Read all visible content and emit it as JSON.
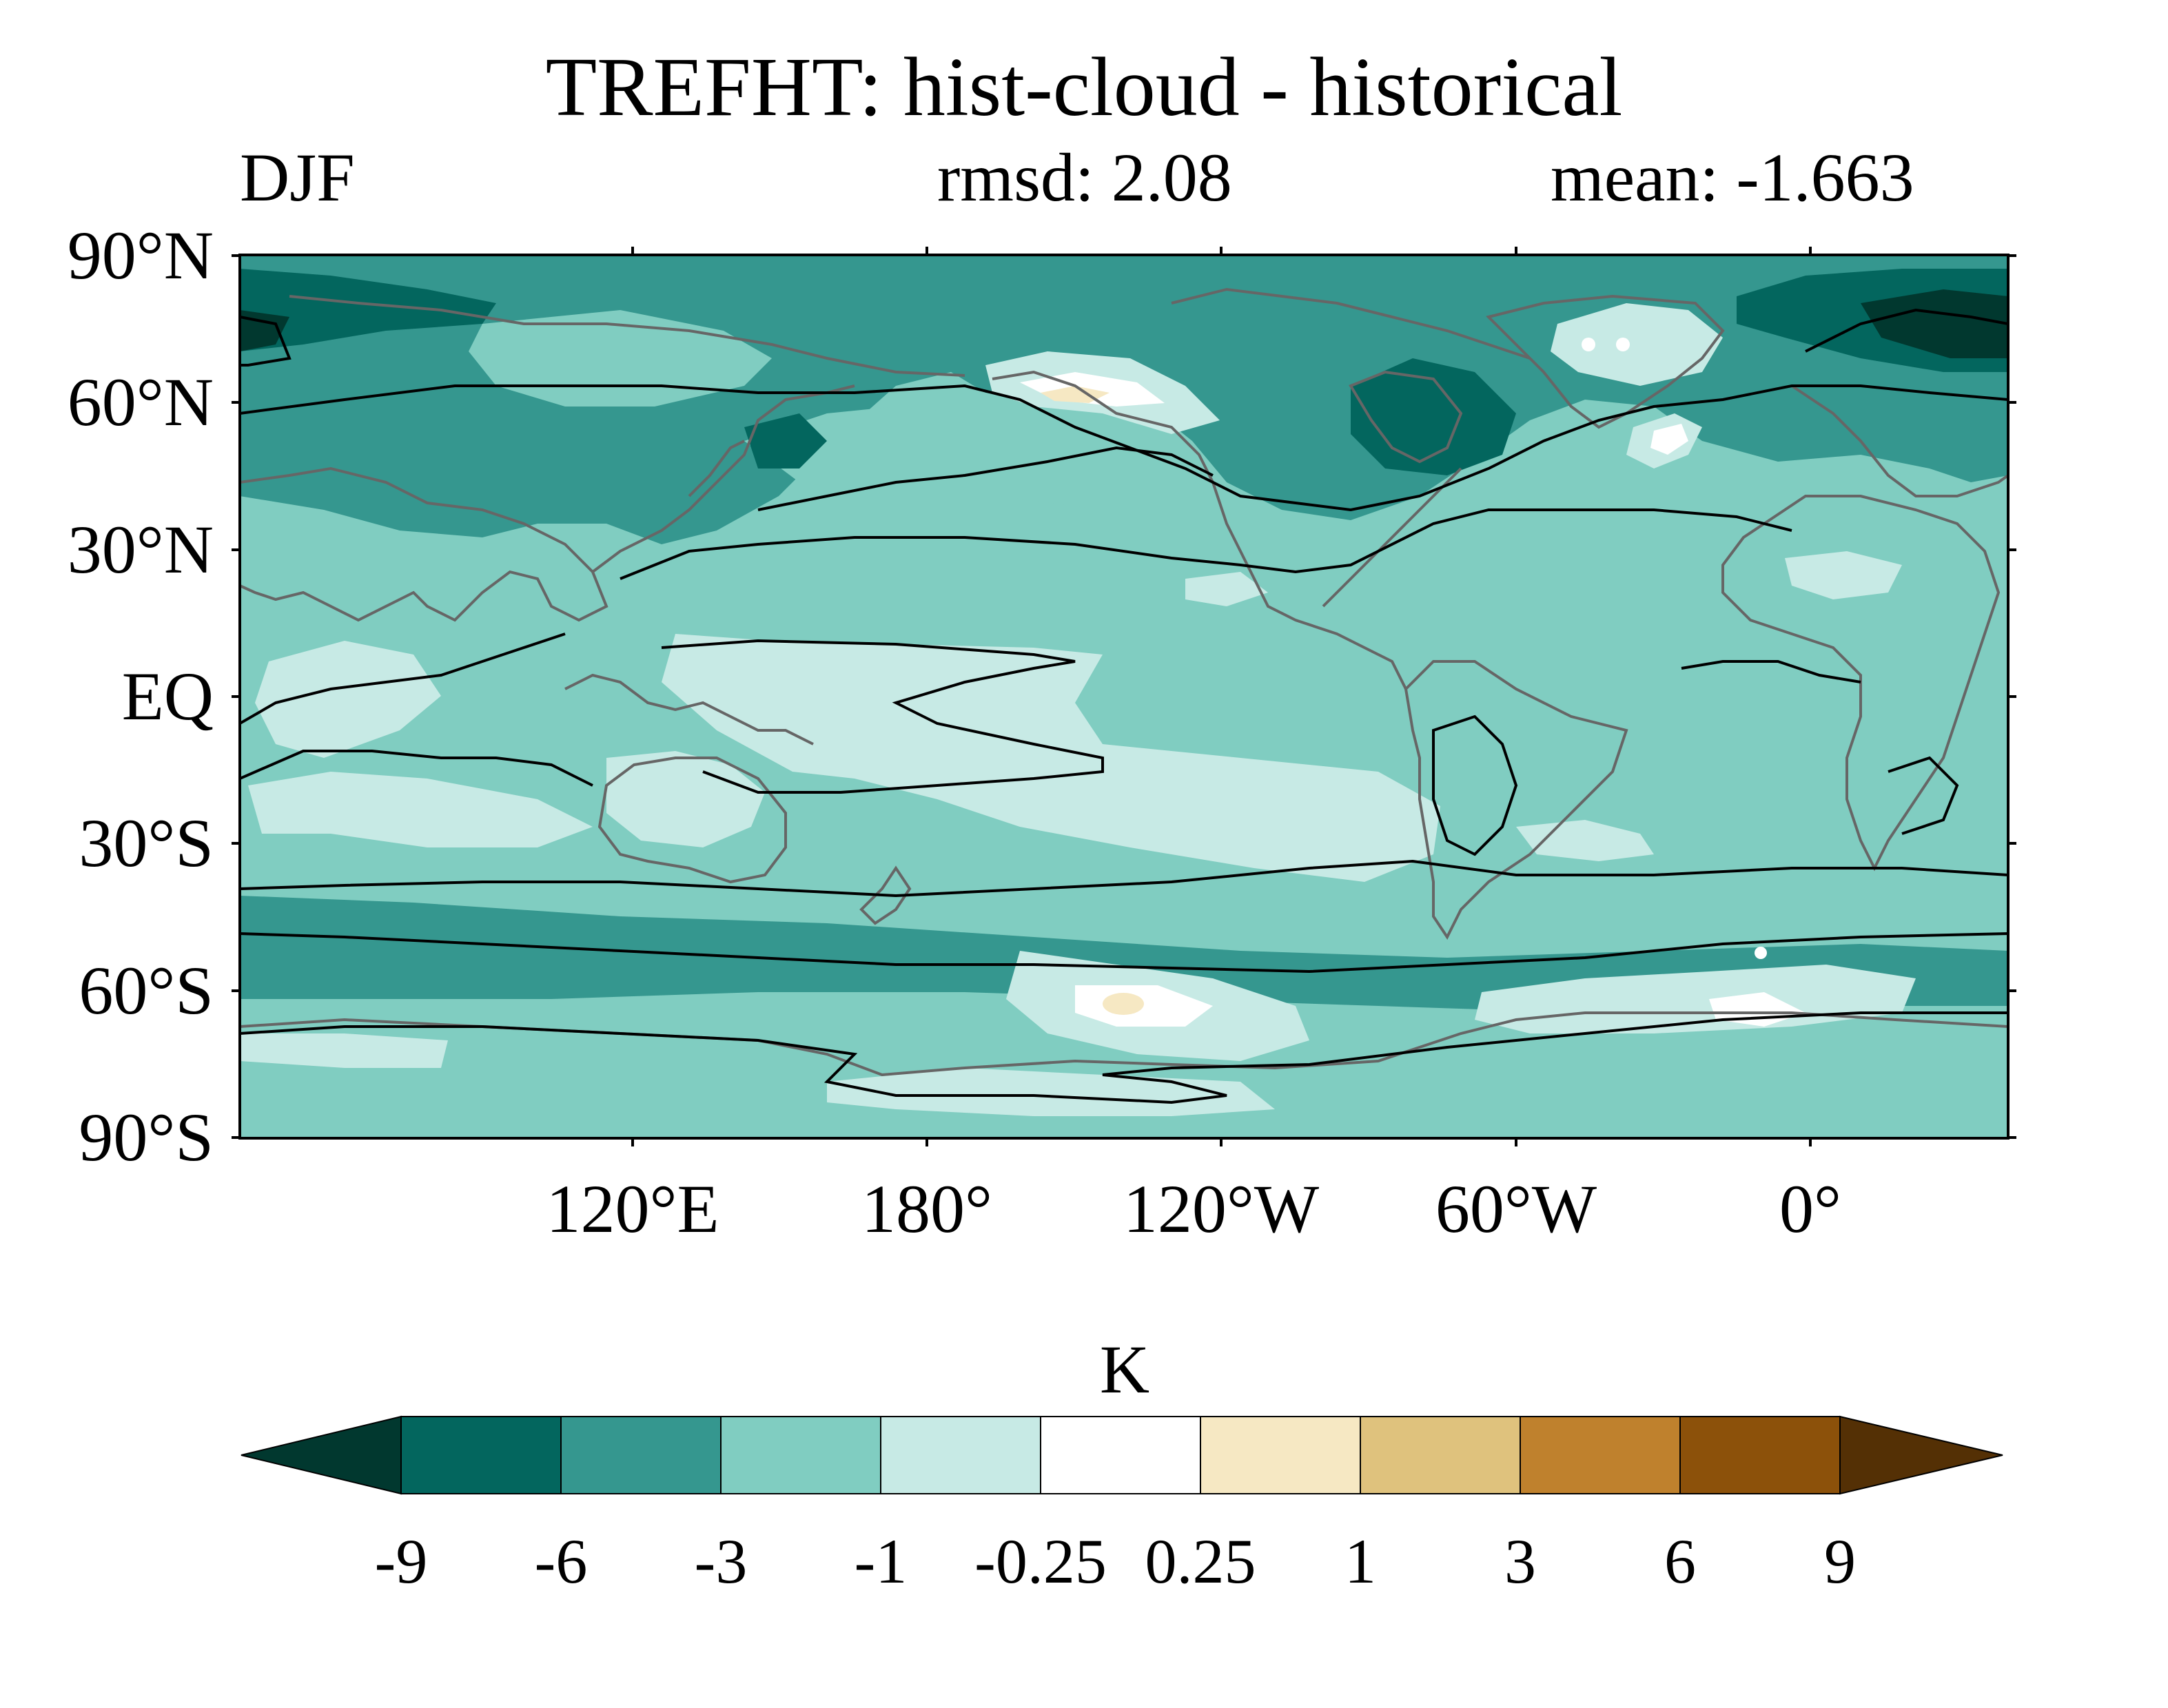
{
  "title": "TREFHT: hist-cloud - historical",
  "season": "DJF",
  "rmsd": "rmsd: 2.08",
  "mean": "mean: -1.663",
  "colors": {
    "c_lt9": "#01382f",
    "c_9_6": "#03665e",
    "c_6_3": "#35978f",
    "c_3_1": "#80cdc1",
    "c_1_025": "#c7eae5",
    "c_025_025": "#ffffff",
    "c_025_1": "#f6e8c3",
    "c_1_3": "#dfc27d",
    "c_3_6": "#bf812d",
    "c_6_9": "#8c510a",
    "c_gt9": "#543005",
    "coast": "#666666",
    "contour": "#000000"
  },
  "map": {
    "projection": "equirectangular",
    "lat_ticks": [
      "90°N",
      "60°N",
      "30°N",
      "EQ",
      "30°S",
      "60°S",
      "90°S"
    ],
    "lon_ticks": [
      "120°E",
      "180°",
      "120°W",
      "60°W",
      "0°"
    ]
  },
  "colorbar": {
    "units": "K",
    "levels": [
      "-9",
      "-6",
      "-3",
      "-1",
      "-0.25",
      "0.25",
      "1",
      "3",
      "6",
      "9"
    ],
    "extend": "both"
  }
}
